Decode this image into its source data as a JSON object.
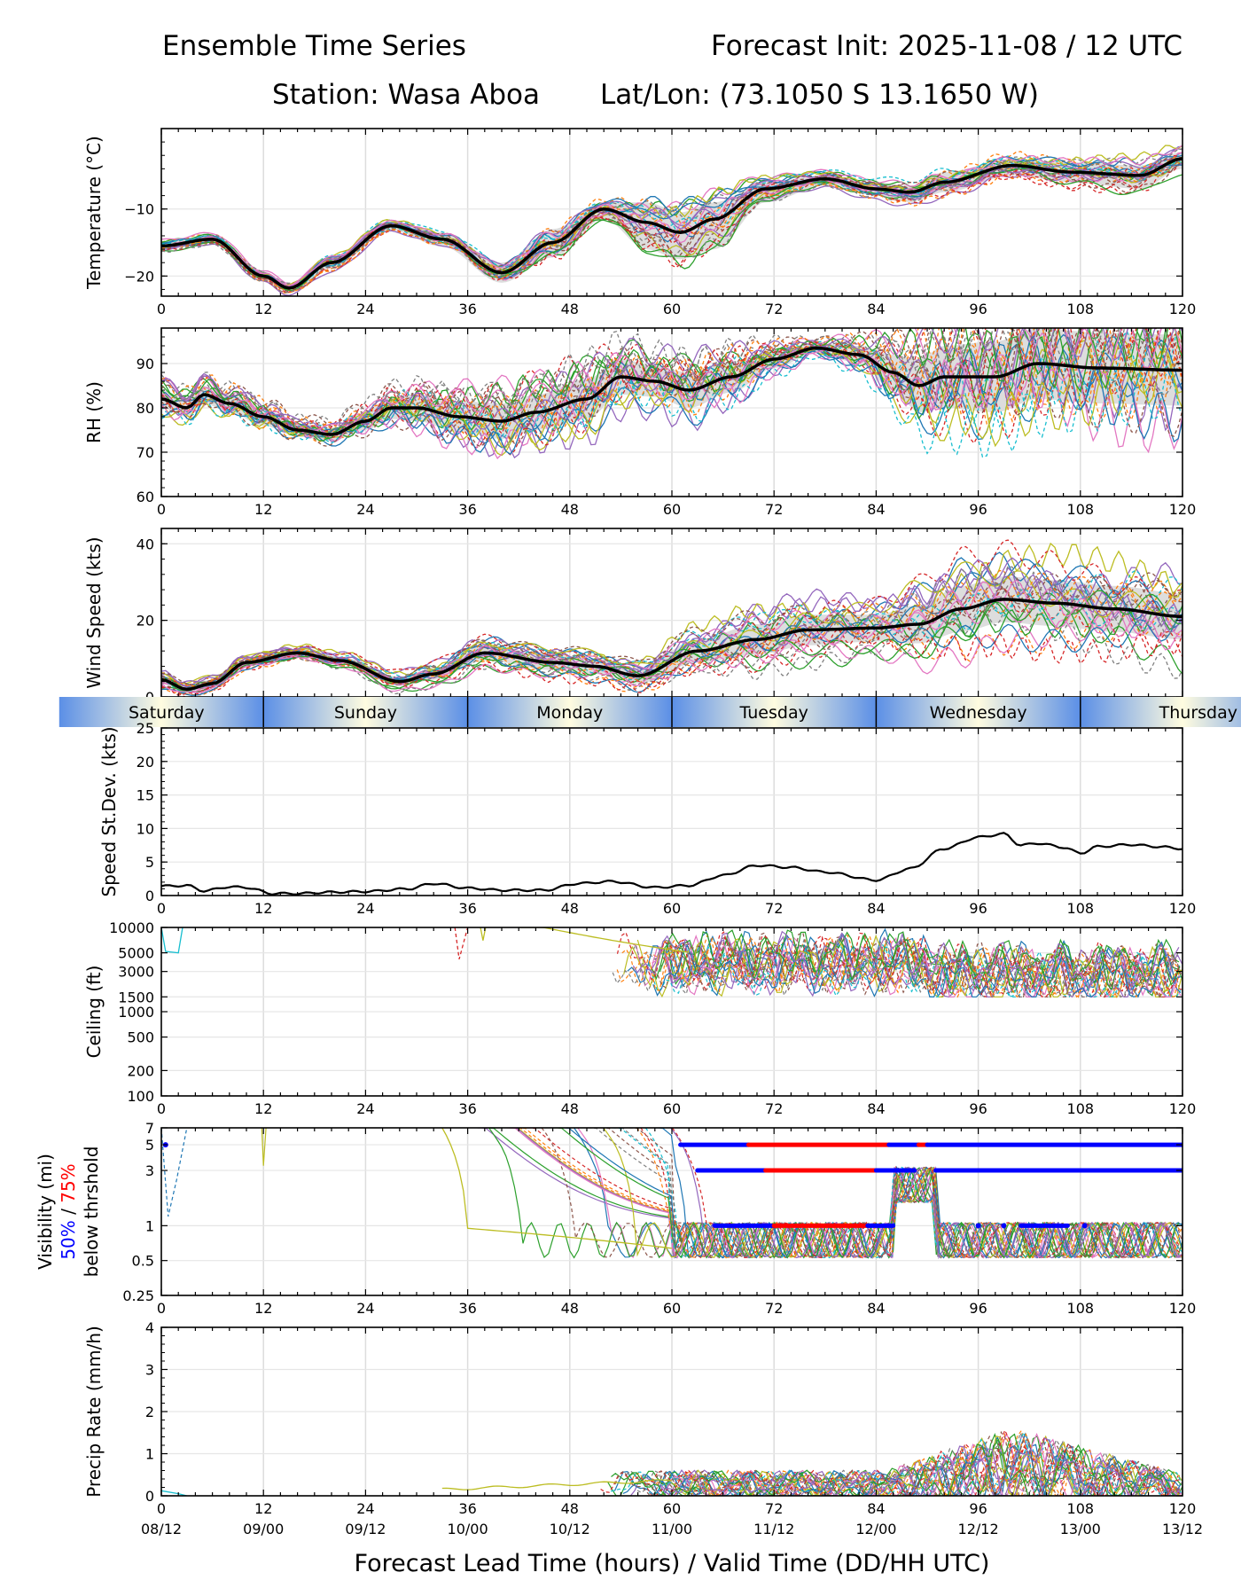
{
  "header": {
    "title": "Ensemble Time Series",
    "init": "Forecast Init: 2025-11-08 / 12 UTC",
    "station": "Station: Wasa Aboa",
    "latlon": "Lat/Lon: (73.1050 S 13.1650 W)"
  },
  "chart_data": {
    "type": "line",
    "x_axis": {
      "label": "Forecast Lead Time (hours) / Valid Time (DD/HH UTC)",
      "range": [
        0,
        120
      ],
      "ticks": [
        0,
        12,
        24,
        36,
        48,
        60,
        72,
        84,
        96,
        108,
        120
      ],
      "valid_time_labels": [
        "08/12",
        "09/00",
        "09/12",
        "10/00",
        "10/12",
        "11/00",
        "11/12",
        "12/00",
        "12/12",
        "13/00",
        "13/12"
      ]
    },
    "day_band": {
      "labels": [
        "Saturday",
        "Sunday",
        "Monday",
        "Tuesday",
        "Wednesday",
        "Thursday"
      ],
      "day_starts_hours": [
        -12,
        12,
        36,
        60,
        84,
        108
      ]
    },
    "panels": [
      {
        "id": "temperature",
        "ylabel": "Temperature (°C)",
        "ylim": [
          -23,
          2
        ],
        "yticks": [
          -20,
          -10
        ],
        "ytick_labels": [
          "−20",
          "−10"
        ],
        "mean_x": [
          0,
          6,
          12,
          15,
          20,
          27,
          33,
          40,
          46,
          52,
          57,
          61,
          65,
          71,
          78,
          84,
          88,
          92,
          100,
          107,
          115,
          120
        ],
        "mean_y": [
          -15.5,
          -14.5,
          -20,
          -21.8,
          -18,
          -12.5,
          -14.5,
          -19.5,
          -15,
          -10,
          -12,
          -13.5,
          -11.5,
          -7,
          -5.5,
          -7,
          -7.5,
          -6,
          -3.5,
          -4.5,
          -5,
          -2.5
        ],
        "spread_lo": [
          -16,
          -15,
          -20.8,
          -22.4,
          -18.8,
          -13.2,
          -15.6,
          -21,
          -17.2,
          -11.5,
          -16,
          -17.5,
          -16,
          -9,
          -6.5,
          -8,
          -9,
          -7.5,
          -5,
          -6,
          -7,
          -4
        ],
        "spread_hi": [
          -15,
          -14,
          -19.4,
          -21.2,
          -17.3,
          -11.8,
          -13.5,
          -18,
          -13,
          -9,
          -9,
          -10.5,
          -9,
          -6,
          -5,
          -6,
          -6.5,
          -4.5,
          -2.5,
          -3,
          -3.5,
          -1.5
        ],
        "band_width": [
          0.6,
          0.6,
          0.6,
          0.6,
          0.8,
          0.6,
          0.8,
          1.2,
          2,
          1.2,
          2.8,
          3.5,
          3,
          1.2,
          0.8,
          1,
          1.3,
          1.5,
          1.5,
          1.7,
          2,
          1.5
        ]
      },
      {
        "id": "rh",
        "ylabel": "RH (%)",
        "ylim": [
          60,
          98
        ],
        "yticks": [
          60,
          70,
          80,
          90
        ],
        "ytick_labels": [
          "60",
          "70",
          "80",
          "90"
        ],
        "mean_x": [
          0,
          3,
          5,
          8,
          12,
          16,
          20,
          24,
          27,
          30,
          35,
          40,
          44,
          50,
          54,
          58,
          62,
          67,
          72,
          77,
          82,
          86,
          89,
          92,
          98,
          103,
          110,
          120
        ],
        "mean_y": [
          82,
          80,
          83,
          81,
          78,
          75,
          74,
          77,
          80,
          80,
          78,
          77,
          79,
          82,
          87,
          86,
          84,
          87,
          91,
          93.5,
          92,
          88,
          85,
          87,
          87,
          90,
          89,
          88.5
        ],
        "band_width": [
          2,
          2,
          2,
          2,
          2,
          1.5,
          1.5,
          2,
          2.5,
          3,
          3.5,
          4,
          4,
          4.5,
          4,
          3.5,
          4,
          3.5,
          2,
          1,
          2,
          4,
          6,
          7,
          8,
          8,
          8,
          8
        ]
      },
      {
        "id": "wind",
        "ylabel": "Wind Speed (kts)",
        "ylim": [
          0,
          44
        ],
        "yticks": [
          0,
          20,
          40
        ],
        "ytick_labels": [
          "0",
          "20",
          "40"
        ],
        "mean_x": [
          0,
          3,
          6,
          10,
          16,
          21,
          28,
          32,
          38,
          46,
          51,
          56,
          63,
          70,
          76,
          84,
          89,
          94,
          99,
          105,
          112,
          120
        ],
        "mean_y": [
          4.5,
          2,
          3.5,
          9,
          11.5,
          9.5,
          4,
          6,
          11.5,
          9,
          8,
          5.5,
          12,
          15,
          17.5,
          18,
          19,
          23,
          25.5,
          24.5,
          23,
          21
        ],
        "band_width": [
          1.2,
          1,
          1,
          1,
          1,
          1,
          1.2,
          1.5,
          2,
          2,
          2,
          2,
          3,
          4,
          4,
          3.5,
          5,
          6,
          6,
          6,
          6,
          6
        ]
      },
      {
        "id": "stdev",
        "ylabel": "Speed St.Dev. (kts)",
        "ylim": [
          0,
          25
        ],
        "yticks": [
          0,
          5,
          10,
          15,
          20,
          25
        ],
        "ytick_labels": [
          "0",
          "5",
          "10",
          "15",
          "20",
          "25"
        ],
        "x": [
          0,
          3,
          5,
          8,
          10,
          13,
          16,
          20,
          24,
          29,
          32,
          36,
          40,
          45,
          49,
          53,
          58,
          62,
          66,
          70,
          74,
          78,
          84,
          88,
          92,
          96,
          99,
          101,
          103,
          106,
          108,
          110,
          114,
          117,
          120
        ],
        "y": [
          1.4,
          1.5,
          0.7,
          1.3,
          1.2,
          0.3,
          0.3,
          0.5,
          0.6,
          1.0,
          1.8,
          1.1,
          0.8,
          0.8,
          1.8,
          2.1,
          1.2,
          1.5,
          3.0,
          4.5,
          4.2,
          3.5,
          2.3,
          4.0,
          7.0,
          8.7,
          9.2,
          7.5,
          7.8,
          7.2,
          6.3,
          7.3,
          7.6,
          7.3,
          7.0
        ]
      },
      {
        "id": "ceiling",
        "ylabel": "Ceiling (ft)",
        "scale": "log",
        "ylim": [
          100,
          10000
        ],
        "yticks": [
          100,
          200,
          500,
          1000,
          1500,
          3000,
          5000,
          10000
        ],
        "ytick_labels": [
          "100",
          "200",
          "500",
          "1000",
          "1500",
          "3000",
          "5000",
          "10000"
        ]
      },
      {
        "id": "visibility",
        "ylabel": "Visibility (mi)",
        "ylabel_50": "50%",
        "ylabel_sep": " / ",
        "ylabel_75": "75%",
        "ylabel_sub": "below thrshold",
        "scale": "log",
        "ylim": [
          0.25,
          7
        ],
        "yticks": [
          0.25,
          0.5,
          1,
          3,
          5,
          7
        ],
        "ytick_labels": [
          "0.25",
          "0.5",
          "1",
          "3",
          "5",
          "7"
        ],
        "threshold_segments": [
          {
            "threshold": 5,
            "prob": 50,
            "from": 61,
            "to": 69
          },
          {
            "threshold": 5,
            "prob": 75,
            "from": 69,
            "to": 85.5
          },
          {
            "threshold": 5,
            "prob": 50,
            "from": 85.5,
            "to": 89
          },
          {
            "threshold": 5,
            "prob": 75,
            "from": 89,
            "to": 90
          },
          {
            "threshold": 5,
            "prob": 50,
            "from": 90,
            "to": 120
          },
          {
            "threshold": 3,
            "prob": 50,
            "from": 63,
            "to": 71
          },
          {
            "threshold": 3,
            "prob": 75,
            "from": 71,
            "to": 84
          },
          {
            "threshold": 3,
            "prob": 50,
            "from": 84,
            "to": 88.5
          },
          {
            "threshold": 3,
            "prob": 50,
            "from": 91,
            "to": 120
          },
          {
            "threshold": 1,
            "prob": 50,
            "from": 65,
            "to": 72
          },
          {
            "threshold": 1,
            "prob": 75,
            "from": 72,
            "to": 83
          },
          {
            "threshold": 1,
            "prob": 50,
            "from": 83,
            "to": 86
          },
          {
            "threshold": 1,
            "prob": 50,
            "from": 101,
            "to": 106.5
          }
        ],
        "threshold_dots": [
          {
            "threshold": 5,
            "x": 0.5
          },
          {
            "threshold": 1,
            "x": 96
          },
          {
            "threshold": 1,
            "x": 99
          },
          {
            "threshold": 1,
            "x": 108.5
          }
        ]
      },
      {
        "id": "precip",
        "ylabel": "Precip Rate (mm/h)",
        "ylim": [
          0,
          4
        ],
        "yticks": [
          0,
          1,
          2,
          3,
          4
        ],
        "ytick_labels": [
          "0",
          "1",
          "2",
          "3",
          "4"
        ]
      }
    ],
    "member_colors": [
      "#1f77b4",
      "#ff7f0e",
      "#2ca02c",
      "#d62728",
      "#9467bd",
      "#8c564b",
      "#e377c2",
      "#7f7f7f",
      "#bcbd22",
      "#17becf"
    ],
    "mean_color": "#000000",
    "spread_color": "#d9d9d9",
    "prob50_color": "#0000ff",
    "prob75_color": "#ff0000"
  }
}
